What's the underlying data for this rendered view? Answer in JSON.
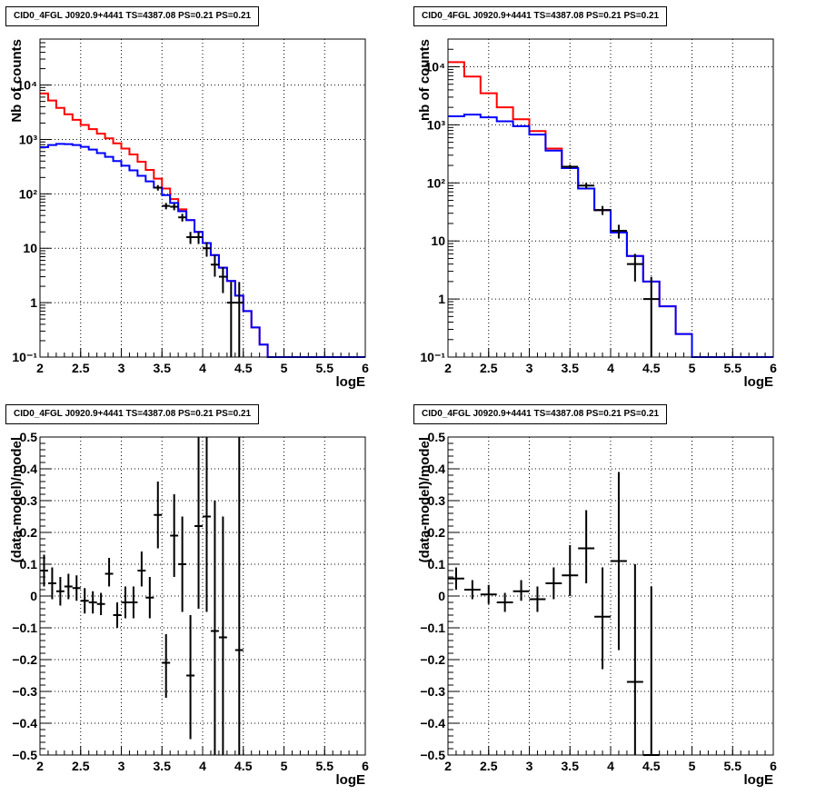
{
  "chart_data": [
    {
      "type": "line",
      "title": "CID0_4FGL J0920.9+4441 TS=4387.08 PS=0.21 PS=0.21",
      "xlabel": "logE",
      "ylabel": "Nb of counts",
      "xlim": [
        2,
        6
      ],
      "ylim": [
        0.1,
        70000
      ],
      "yscale": "log",
      "grid": true,
      "xticks": [
        2,
        2.5,
        3,
        3.5,
        4,
        4.5,
        5,
        5.5,
        6
      ],
      "xtick_labels": [
        "2",
        "2.5",
        "3",
        "3.5",
        "4",
        "4.5",
        "5",
        "5.5",
        "6"
      ],
      "yticks": [
        0.1,
        1,
        10,
        100,
        1000,
        10000
      ],
      "ytick_labels": [
        "10⁻¹",
        "1",
        "10",
        "10²",
        "10³",
        "10⁴"
      ],
      "bin_edges": [
        2.0,
        2.1,
        2.2,
        2.3,
        2.4,
        2.5,
        2.6,
        2.7,
        2.8,
        2.9,
        3.0,
        3.1,
        3.2,
        3.3,
        3.4,
        3.5,
        3.6,
        3.7,
        3.8,
        3.9,
        4.0,
        4.1,
        4.2,
        4.3,
        4.4,
        4.5,
        4.6,
        4.7,
        4.8,
        4.9,
        5.0,
        5.1,
        5.2,
        5.3,
        5.4,
        5.5,
        5.6,
        5.7,
        5.8,
        5.9,
        6.0
      ],
      "series": [
        {
          "color": "#ff0000",
          "values": [
            7000,
            5200,
            3800,
            2900,
            2300,
            1850,
            1550,
            1280,
            1050,
            850,
            680,
            530,
            390,
            275,
            190,
            125,
            80,
            52,
            33,
            20,
            12.5,
            7.5,
            4.4,
            2.5,
            1.35,
            0.7,
            0.35,
            0.17,
            0.1,
            0.1,
            0.1,
            0.1,
            0.1,
            0.1,
            0.1,
            0.1,
            0.1,
            0.1,
            0.1,
            0.1
          ]
        },
        {
          "color": "#0000ff",
          "values": [
            720,
            790,
            830,
            820,
            790,
            730,
            650,
            560,
            480,
            400,
            330,
            270,
            215,
            170,
            130,
            95,
            68,
            48,
            33,
            20,
            12.5,
            7.5,
            4.4,
            2.5,
            1.35,
            0.7,
            0.35,
            0.17,
            0.1,
            0.1,
            0.1,
            0.1,
            0.1,
            0.1,
            0.1,
            0.1,
            0.1,
            0.1,
            0.1,
            0.1
          ]
        }
      ],
      "points": [
        {
          "x": 3.45,
          "y": 130,
          "xerr": 0.05,
          "ylo": 115,
          "yhi": 145
        },
        {
          "x": 3.55,
          "y": 60,
          "xerr": 0.05,
          "ylo": 52,
          "yhi": 68
        },
        {
          "x": 3.65,
          "y": 58,
          "xerr": 0.05,
          "ylo": 50,
          "yhi": 66
        },
        {
          "x": 3.75,
          "y": 37,
          "xerr": 0.05,
          "ylo": 31,
          "yhi": 43
        },
        {
          "x": 3.85,
          "y": 16,
          "xerr": 0.05,
          "ylo": 12,
          "yhi": 20
        },
        {
          "x": 3.95,
          "y": 16,
          "xerr": 0.05,
          "ylo": 12,
          "yhi": 20
        },
        {
          "x": 4.05,
          "y": 10,
          "xerr": 0.05,
          "ylo": 7,
          "yhi": 13
        },
        {
          "x": 4.15,
          "y": 5,
          "xerr": 0.05,
          "ylo": 3,
          "yhi": 7.5
        },
        {
          "x": 4.25,
          "y": 3,
          "xerr": 0.05,
          "ylo": 1.5,
          "yhi": 4.5
        },
        {
          "x": 4.35,
          "y": 1,
          "xerr": 0.05,
          "ylo": 0.1,
          "yhi": 2.4
        },
        {
          "x": 4.45,
          "y": 1,
          "xerr": 0.05,
          "ylo": 0.1,
          "yhi": 2.4
        }
      ]
    },
    {
      "type": "line",
      "title": "CID0_4FGL J0920.9+4441 TS=4387.08 PS=0.21 PS=0.21",
      "xlabel": "logE",
      "ylabel": "nb of counts",
      "xlim": [
        2,
        6
      ],
      "ylim": [
        0.1,
        30000
      ],
      "yscale": "log",
      "grid": true,
      "xticks": [
        2,
        2.5,
        3,
        3.5,
        4,
        4.5,
        5,
        5.5,
        6
      ],
      "xtick_labels": [
        "2",
        "2.5",
        "3",
        "3.5",
        "4",
        "4.5",
        "5",
        "5.5",
        "6"
      ],
      "yticks": [
        0.1,
        1,
        10,
        100,
        1000,
        10000
      ],
      "ytick_labels": [
        "10⁻¹",
        "1",
        "10",
        "10²",
        "10³",
        "10⁴"
      ],
      "bin_edges": [
        2.0,
        2.2,
        2.4,
        2.6,
        2.8,
        3.0,
        3.2,
        3.4,
        3.6,
        3.8,
        4.0,
        4.2,
        4.4,
        4.6,
        4.8,
        5.0,
        5.2,
        5.4,
        5.6,
        5.8,
        6.0
      ],
      "series": [
        {
          "color": "#ff0000",
          "values": [
            12000,
            6800,
            3500,
            2000,
            1250,
            780,
            390,
            180,
            80,
            34,
            14,
            5.5,
            2.0,
            0.75,
            0.25,
            0.1,
            0.1,
            0.1,
            0.1,
            0.1
          ]
        },
        {
          "color": "#0000ff",
          "values": [
            1400,
            1500,
            1350,
            1150,
            950,
            680,
            360,
            180,
            80,
            34,
            14,
            5.5,
            2.0,
            0.75,
            0.25,
            0.1,
            0.1,
            0.1,
            0.1,
            0.1
          ]
        }
      ],
      "points": [
        {
          "x": 3.5,
          "y": 190,
          "xerr": 0.1,
          "ylo": 175,
          "yhi": 205
        },
        {
          "x": 3.7,
          "y": 90,
          "xerr": 0.1,
          "ylo": 80,
          "yhi": 100
        },
        {
          "x": 3.9,
          "y": 34,
          "xerr": 0.1,
          "ylo": 28,
          "yhi": 40
        },
        {
          "x": 4.1,
          "y": 15,
          "xerr": 0.1,
          "ylo": 11,
          "yhi": 19
        },
        {
          "x": 4.3,
          "y": 4,
          "xerr": 0.1,
          "ylo": 2,
          "yhi": 6
        },
        {
          "x": 4.5,
          "y": 1,
          "xerr": 0.1,
          "ylo": 0.1,
          "yhi": 2.4
        }
      ]
    },
    {
      "type": "scatter",
      "title": "CID0_4FGL J0920.9+4441 TS=4387.08 PS=0.21 PS=0.21",
      "xlabel": "logE",
      "ylabel": "(data-model)/model",
      "xlim": [
        2,
        6
      ],
      "ylim": [
        -0.5,
        0.5
      ],
      "grid": true,
      "xticks": [
        2,
        2.5,
        3,
        3.5,
        4,
        4.5,
        5,
        5.5,
        6
      ],
      "xtick_labels": [
        "2",
        "2.5",
        "3",
        "3.5",
        "4",
        "4.5",
        "5",
        "5.5",
        "6"
      ],
      "yticks": [
        -0.5,
        -0.4,
        -0.3,
        -0.2,
        -0.1,
        0,
        0.1,
        0.2,
        0.3,
        0.4,
        0.5
      ],
      "ytick_labels": [
        "−0.5",
        "−0.4",
        "−0.3",
        "−0.2",
        "−0.1",
        "0",
        "0.1",
        "0.2",
        "0.3",
        "0.4",
        "0.5"
      ],
      "points": [
        {
          "x": 2.05,
          "y": 0.08,
          "xerr": 0.05,
          "ylo": 0.03,
          "yhi": 0.13
        },
        {
          "x": 2.15,
          "y": 0.04,
          "xerr": 0.05,
          "ylo": -0.01,
          "yhi": 0.09
        },
        {
          "x": 2.25,
          "y": 0.015,
          "xerr": 0.05,
          "ylo": -0.03,
          "yhi": 0.06
        },
        {
          "x": 2.35,
          "y": 0.03,
          "xerr": 0.05,
          "ylo": -0.01,
          "yhi": 0.07
        },
        {
          "x": 2.45,
          "y": 0.025,
          "xerr": 0.05,
          "ylo": -0.015,
          "yhi": 0.065
        },
        {
          "x": 2.55,
          "y": -0.015,
          "xerr": 0.05,
          "ylo": -0.055,
          "yhi": 0.025
        },
        {
          "x": 2.65,
          "y": -0.02,
          "xerr": 0.05,
          "ylo": -0.055,
          "yhi": 0.015
        },
        {
          "x": 2.75,
          "y": -0.025,
          "xerr": 0.05,
          "ylo": -0.06,
          "yhi": 0.01
        },
        {
          "x": 2.85,
          "y": 0.07,
          "xerr": 0.05,
          "ylo": 0.03,
          "yhi": 0.12
        },
        {
          "x": 2.95,
          "y": -0.06,
          "xerr": 0.05,
          "ylo": -0.1,
          "yhi": -0.02
        },
        {
          "x": 3.05,
          "y": -0.02,
          "xerr": 0.05,
          "ylo": -0.07,
          "yhi": 0.03
        },
        {
          "x": 3.15,
          "y": -0.02,
          "xerr": 0.05,
          "ylo": -0.07,
          "yhi": 0.03
        },
        {
          "x": 3.25,
          "y": 0.08,
          "xerr": 0.05,
          "ylo": 0.03,
          "yhi": 0.14
        },
        {
          "x": 3.35,
          "y": -0.005,
          "xerr": 0.05,
          "ylo": -0.07,
          "yhi": 0.06
        },
        {
          "x": 3.45,
          "y": 0.255,
          "xerr": 0.05,
          "ylo": 0.15,
          "yhi": 0.36
        },
        {
          "x": 3.55,
          "y": -0.21,
          "xerr": 0.05,
          "ylo": -0.32,
          "yhi": -0.12
        },
        {
          "x": 3.65,
          "y": 0.19,
          "xerr": 0.05,
          "ylo": 0.06,
          "yhi": 0.32
        },
        {
          "x": 3.75,
          "y": 0.1,
          "xerr": 0.05,
          "ylo": -0.05,
          "yhi": 0.25
        },
        {
          "x": 3.85,
          "y": -0.25,
          "xerr": 0.05,
          "ylo": -0.45,
          "yhi": -0.06
        },
        {
          "x": 3.95,
          "y": 0.22,
          "xerr": 0.05,
          "ylo": -0.04,
          "yhi": 0.5
        },
        {
          "x": 4.05,
          "y": 0.25,
          "xerr": 0.05,
          "ylo": -0.05,
          "yhi": 0.5
        },
        {
          "x": 4.15,
          "y": -0.11,
          "xerr": 0.05,
          "ylo": -0.5,
          "yhi": 0.3
        },
        {
          "x": 4.25,
          "y": -0.13,
          "xerr": 0.05,
          "ylo": -0.5,
          "yhi": 0.25
        },
        {
          "x": 4.45,
          "y": -0.17,
          "xerr": 0.05,
          "ylo": -0.5,
          "yhi": 0.5
        }
      ]
    },
    {
      "type": "scatter",
      "title": "CID0_4FGL J0920.9+4441 TS=4387.08 PS=0.21 PS=0.21",
      "xlabel": "logE",
      "ylabel": "(data-model)/model",
      "xlim": [
        2,
        6
      ],
      "ylim": [
        -0.5,
        0.5
      ],
      "grid": true,
      "xticks": [
        2,
        2.5,
        3,
        3.5,
        4,
        4.5,
        5,
        5.5,
        6
      ],
      "xtick_labels": [
        "2",
        "2.5",
        "3",
        "3.5",
        "4",
        "4.5",
        "5",
        "5.5",
        "6"
      ],
      "yticks": [
        -0.5,
        -0.4,
        -0.3,
        -0.2,
        -0.1,
        0,
        0.1,
        0.2,
        0.3,
        0.4,
        0.5
      ],
      "ytick_labels": [
        "−0.5",
        "−0.4",
        "−0.3",
        "−0.2",
        "−0.1",
        "0",
        "0.1",
        "0.2",
        "0.3",
        "0.4",
        "0.5"
      ],
      "points": [
        {
          "x": 2.1,
          "y": 0.055,
          "xerr": 0.1,
          "ylo": 0.02,
          "yhi": 0.09
        },
        {
          "x": 2.3,
          "y": 0.02,
          "xerr": 0.1,
          "ylo": -0.01,
          "yhi": 0.05
        },
        {
          "x": 2.5,
          "y": 0.005,
          "xerr": 0.1,
          "ylo": -0.025,
          "yhi": 0.035
        },
        {
          "x": 2.7,
          "y": -0.02,
          "xerr": 0.1,
          "ylo": -0.05,
          "yhi": 0.01
        },
        {
          "x": 2.9,
          "y": 0.015,
          "xerr": 0.1,
          "ylo": -0.015,
          "yhi": 0.05
        },
        {
          "x": 3.1,
          "y": -0.01,
          "xerr": 0.1,
          "ylo": -0.05,
          "yhi": 0.03
        },
        {
          "x": 3.3,
          "y": 0.04,
          "xerr": 0.1,
          "ylo": -0.01,
          "yhi": 0.09
        },
        {
          "x": 3.5,
          "y": 0.065,
          "xerr": 0.1,
          "ylo": 0.0,
          "yhi": 0.16
        },
        {
          "x": 3.7,
          "y": 0.15,
          "xerr": 0.1,
          "ylo": 0.04,
          "yhi": 0.27
        },
        {
          "x": 3.9,
          "y": -0.065,
          "xerr": 0.1,
          "ylo": -0.23,
          "yhi": 0.09
        },
        {
          "x": 4.1,
          "y": 0.11,
          "xerr": 0.1,
          "ylo": -0.17,
          "yhi": 0.39
        },
        {
          "x": 4.3,
          "y": -0.27,
          "xerr": 0.1,
          "ylo": -0.5,
          "yhi": 0.1
        },
        {
          "x": 4.5,
          "y": -0.5,
          "xerr": 0.1,
          "ylo": -0.5,
          "yhi": 0.03
        }
      ]
    }
  ]
}
